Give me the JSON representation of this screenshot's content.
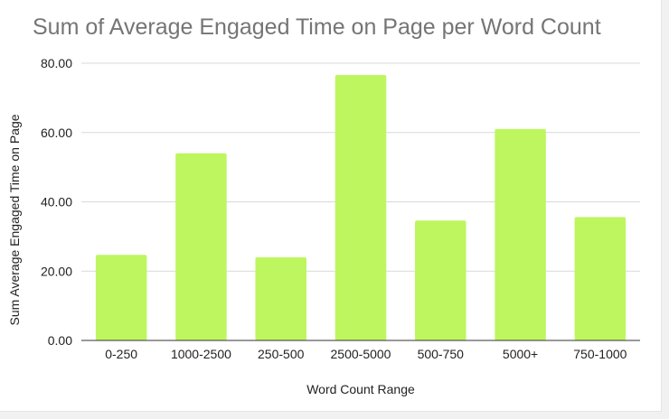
{
  "chart_data": {
    "type": "bar",
    "title": "Sum of Average Engaged Time on Page per Word Count",
    "xlabel": "Word Count Range",
    "ylabel": "Sum Average Engaged Time on Page",
    "categories": [
      "0-250",
      "1000-2500",
      "250-500",
      "2500-5000",
      "500-750",
      "5000+",
      "750-1000"
    ],
    "values": [
      24.7,
      54.0,
      24.0,
      76.6,
      34.6,
      61.0,
      35.6
    ],
    "ylim": [
      0,
      80
    ],
    "yticks": [
      "0.00",
      "20.00",
      "40.00",
      "60.00",
      "80.00"
    ],
    "ytick_values": [
      0,
      20,
      40,
      60,
      80
    ],
    "grid": true,
    "legend": "none",
    "bar_color": "#bdf65f",
    "grid_color": "#d9d9d9",
    "axis_color": "#333333",
    "title_color": "#757575"
  }
}
